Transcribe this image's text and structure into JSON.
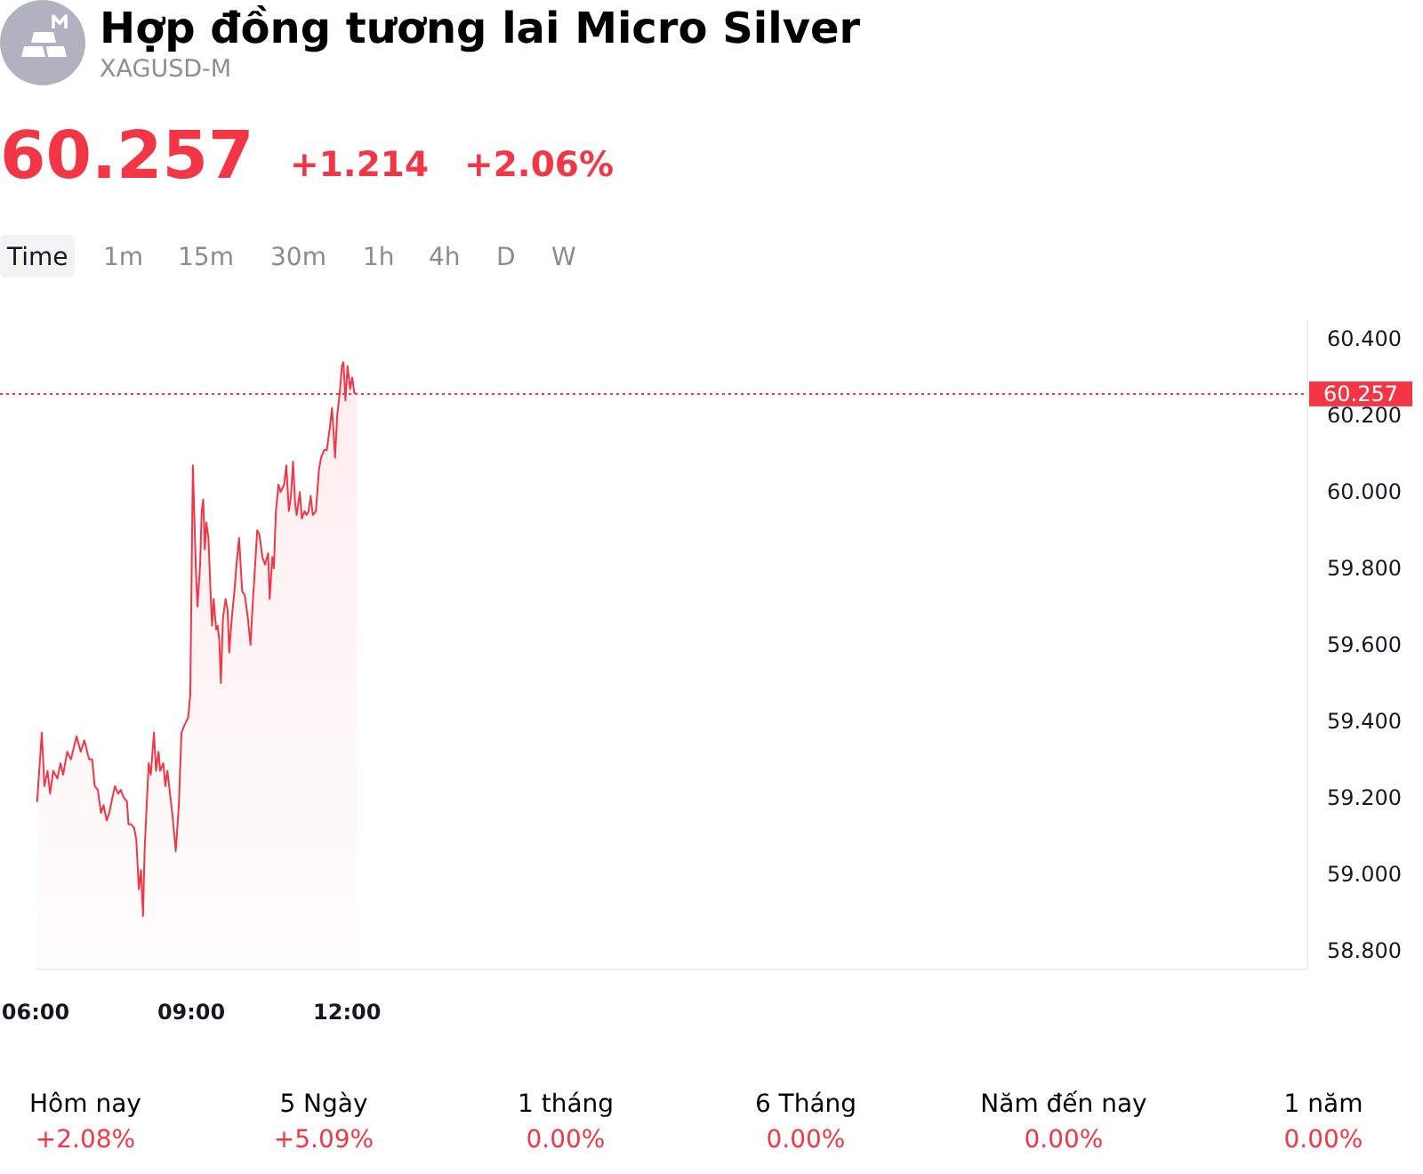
{
  "chart_data": {
    "type": "area",
    "title": "Hợp đồng tương lai Micro Silver",
    "subtitle": "XAGUSD-M",
    "annotations": [
      "60.257",
      "+1.214",
      "+2.06%",
      "Time",
      "1m",
      "15m",
      "30m",
      "1h",
      "4h",
      "D",
      "W",
      "Hôm nay",
      "+2.08%",
      "5 Ngày",
      "+5.09%",
      "1 tháng",
      "0.00%",
      "6 Tháng",
      "0.00%",
      "Năm đến nay",
      "0.00%",
      "1 năm",
      "0.00%"
    ],
    "x": [
      6.03,
      6.12,
      6.17,
      6.23,
      6.28,
      6.34,
      6.42,
      6.48,
      6.53,
      6.61,
      6.68,
      6.79,
      6.87,
      6.94,
      7.03,
      7.09,
      7.14,
      7.2,
      7.26,
      7.31,
      7.37,
      7.42,
      7.48,
      7.53,
      7.59,
      7.64,
      7.7,
      7.76,
      7.79,
      7.84,
      7.9,
      7.94,
      7.99,
      8.03,
      8.07,
      8.1,
      8.14,
      8.18,
      8.22,
      8.28,
      8.32,
      8.37,
      8.4,
      8.46,
      8.5,
      8.54,
      8.59,
      8.64,
      8.7,
      8.76,
      8.81,
      8.87,
      8.94,
      8.98,
      9.03,
      9.09,
      9.12,
      9.17,
      9.2,
      9.23,
      9.26,
      9.29,
      9.33,
      9.37,
      9.4,
      9.43,
      9.48,
      9.51,
      9.54,
      9.57,
      9.61,
      9.66,
      9.7,
      9.73,
      9.78,
      9.83,
      9.87,
      9.92,
      9.98,
      10.03,
      10.09,
      10.14,
      10.18,
      10.23,
      10.27,
      10.31,
      10.37,
      10.42,
      10.48,
      10.51,
      10.56,
      10.59,
      10.63,
      10.68,
      10.72,
      10.79,
      10.83,
      10.88,
      10.92,
      10.96,
      11,
      11.03,
      11.09,
      11.13,
      11.18,
      11.22,
      11.26,
      11.3,
      11.34,
      11.4,
      11.46,
      11.5,
      11.56,
      11.61,
      11.67,
      11.71,
      11.77,
      11.81,
      11.86,
      11.9,
      11.93,
      11.97,
      12.01,
      12.06,
      12.1,
      12.14,
      12.19
    ],
    "series": [
      {
        "color": "#f23645",
        "values": [
          59.19,
          59.37,
          59.23,
          59.27,
          59.21,
          59.27,
          59.25,
          59.29,
          59.26,
          59.32,
          59.3,
          59.36,
          59.32,
          59.35,
          59.3,
          59.3,
          59.23,
          59.22,
          59.16,
          59.18,
          59.14,
          59.16,
          59.2,
          59.23,
          59.21,
          59.22,
          59.2,
          59.19,
          59.13,
          59.13,
          59.12,
          59.09,
          58.96,
          59.01,
          58.89,
          59.06,
          59.18,
          59.29,
          59.26,
          59.37,
          59.27,
          59.32,
          59.27,
          59.29,
          59.23,
          59.27,
          59.21,
          59.15,
          59.06,
          59.18,
          59.37,
          59.39,
          59.41,
          59.47,
          60.07,
          59.79,
          59.7,
          59.81,
          59.95,
          59.98,
          59.85,
          59.92,
          59.88,
          59.74,
          59.65,
          59.72,
          59.64,
          59.65,
          59.61,
          59.5,
          59.67,
          59.72,
          59.69,
          59.58,
          59.67,
          59.74,
          59.81,
          59.88,
          59.74,
          59.73,
          59.67,
          59.6,
          59.7,
          59.81,
          59.9,
          59.89,
          59.83,
          59.81,
          59.84,
          59.72,
          59.83,
          59.8,
          59.95,
          60.02,
          60,
          60.02,
          60.07,
          59.95,
          59.99,
          60.08,
          59.97,
          59.94,
          60,
          59.93,
          59.95,
          59.94,
          59.95,
          59.99,
          59.94,
          59.95,
          60.06,
          60.09,
          60.11,
          60.11,
          60.17,
          60.22,
          60.09,
          60.2,
          60.26,
          60.33,
          60.34,
          60.24,
          60.33,
          60.27,
          60.3,
          60.26,
          60.257
        ]
      }
    ],
    "xlim": [
      6,
      30.5
    ],
    "xticks": [
      {
        "value": 6,
        "label": "06:00"
      },
      {
        "value": 9,
        "label": "09:00"
      },
      {
        "value": 12,
        "label": "12:00"
      }
    ],
    "ylim": [
      58.75,
      60.45
    ],
    "yticks": [
      {
        "value": 58.8,
        "label": "58.800"
      },
      {
        "value": 59,
        "label": "59.000"
      },
      {
        "value": 59.2,
        "label": "59.200"
      },
      {
        "value": 59.4,
        "label": "59.400"
      },
      {
        "value": 59.6,
        "label": "59.600"
      },
      {
        "value": 59.8,
        "label": "59.800"
      },
      {
        "value": 60,
        "label": "60.000"
      },
      {
        "value": 60.2,
        "label": "60.200"
      },
      {
        "value": 60.4,
        "label": "60.400"
      }
    ],
    "ref_lines": [
      {
        "axis": "y",
        "value": 60.257,
        "label": "60.257",
        "color": "#f23645",
        "line_style": "dotted"
      }
    ]
  }
}
